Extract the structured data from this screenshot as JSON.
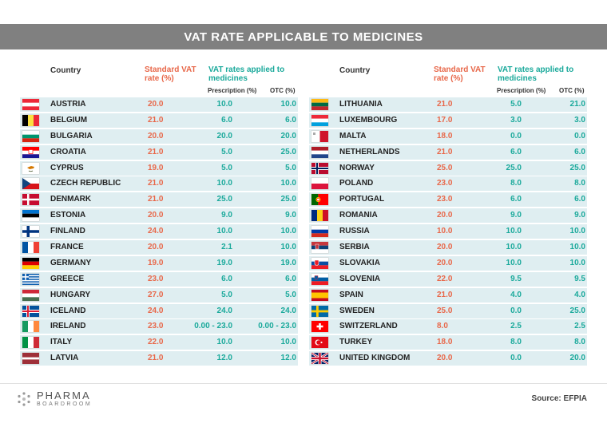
{
  "title": "VAT RATE APPLICABLE TO MEDICINES",
  "headers": {
    "country": "Country",
    "standard_vat": "Standard VAT rate (%)",
    "vat_applied": "VAT rates applied to medicines",
    "prescription": "Prescription (%)",
    "otc": "OTC (%)"
  },
  "colors": {
    "standard": "#e8684a",
    "applied": "#1aa99b",
    "row_bg": "#dfeef1",
    "title_bg": "#808080"
  },
  "footer": {
    "logo_line1": "PHARMA",
    "logo_line2": "BOARDROOM",
    "source": "Source: EFPIA"
  },
  "chart_data": {
    "type": "table",
    "columns": [
      "Country",
      "Standard VAT rate (%)",
      "Prescription (%)",
      "OTC (%)"
    ],
    "left": [
      {
        "country": "AUSTRIA",
        "flag": "austria-flag",
        "standard": "20.0",
        "prescription": "10.0",
        "otc": "10.0"
      },
      {
        "country": "BELGIUM",
        "flag": "belgium-flag",
        "standard": "21.0",
        "prescription": "6.0",
        "otc": "6.0"
      },
      {
        "country": "BULGARIA",
        "flag": "bulgaria-flag",
        "standard": "20.0",
        "prescription": "20.0",
        "otc": "20.0"
      },
      {
        "country": "CROATIA",
        "flag": "croatia-flag",
        "standard": "21.0",
        "prescription": "5.0",
        "otc": "25.0"
      },
      {
        "country": "CYPRUS",
        "flag": "cyprus-flag",
        "standard": "19.0",
        "prescription": "5.0",
        "otc": "5.0"
      },
      {
        "country": "CZECH REPUBLIC",
        "flag": "czech-republic-flag",
        "standard": "21.0",
        "prescription": "10.0",
        "otc": "10.0"
      },
      {
        "country": "DENMARK",
        "flag": "denmark-flag",
        "standard": "21.0",
        "prescription": "25.0",
        "otc": "25.0"
      },
      {
        "country": "ESTONIA",
        "flag": "estonia-flag",
        "standard": "20.0",
        "prescription": "9.0",
        "otc": "9.0"
      },
      {
        "country": "FINLAND",
        "flag": "finland-flag",
        "standard": "24.0",
        "prescription": "10.0",
        "otc": "10.0"
      },
      {
        "country": "FRANCE",
        "flag": "france-flag",
        "standard": "20.0",
        "prescription": "2.1",
        "otc": "10.0"
      },
      {
        "country": "GERMANY",
        "flag": "germany-flag",
        "standard": "19.0",
        "prescription": "19.0",
        "otc": "19.0"
      },
      {
        "country": "GREECE",
        "flag": "greece-flag",
        "standard": "23.0",
        "prescription": "6.0",
        "otc": "6.0"
      },
      {
        "country": "HUNGARY",
        "flag": "hungary-flag",
        "standard": "27.0",
        "prescription": "5.0",
        "otc": "5.0"
      },
      {
        "country": "ICELAND",
        "flag": "iceland-flag",
        "standard": "24.0",
        "prescription": "24.0",
        "otc": "24.0"
      },
      {
        "country": "IRELAND",
        "flag": "ireland-flag",
        "standard": "23.0",
        "prescription": "0.00 - 23.0",
        "otc": "0.00 - 23.0"
      },
      {
        "country": "ITALY",
        "flag": "italy-flag",
        "standard": "22.0",
        "prescription": "10.0",
        "otc": "10.0"
      },
      {
        "country": "LATVIA",
        "flag": "latvia-flag",
        "standard": "21.0",
        "prescription": "12.0",
        "otc": "12.0"
      }
    ],
    "right": [
      {
        "country": "LITHUANIA",
        "flag": "lithuania-flag",
        "standard": "21.0",
        "prescription": "5.0",
        "otc": "21.0"
      },
      {
        "country": "LUXEMBOURG",
        "flag": "luxembourg-flag",
        "standard": "17.0",
        "prescription": "3.0",
        "otc": "3.0"
      },
      {
        "country": "MALTA",
        "flag": "malta-flag",
        "standard": "18.0",
        "prescription": "0.0",
        "otc": "0.0"
      },
      {
        "country": "NETHERLANDS",
        "flag": "netherlands-flag",
        "standard": "21.0",
        "prescription": "6.0",
        "otc": "6.0"
      },
      {
        "country": "NORWAY",
        "flag": "norway-flag",
        "standard": "25.0",
        "prescription": "25.0",
        "otc": "25.0"
      },
      {
        "country": "POLAND",
        "flag": "poland-flag",
        "standard": "23.0",
        "prescription": "8.0",
        "otc": "8.0"
      },
      {
        "country": "PORTUGAL",
        "flag": "portugal-flag",
        "standard": "23.0",
        "prescription": "6.0",
        "otc": "6.0"
      },
      {
        "country": "ROMANIA",
        "flag": "romania-flag",
        "standard": "20.0",
        "prescription": "9.0",
        "otc": "9.0"
      },
      {
        "country": "RUSSIA",
        "flag": "russia-flag",
        "standard": "10.0",
        "prescription": "10.0",
        "otc": "10.0"
      },
      {
        "country": "SERBIA",
        "flag": "serbia-flag",
        "standard": "20.0",
        "prescription": "10.0",
        "otc": "10.0"
      },
      {
        "country": "SLOVAKIA",
        "flag": "slovakia-flag",
        "standard": "20.0",
        "prescription": "10.0",
        "otc": "10.0"
      },
      {
        "country": "SLOVENIA",
        "flag": "slovenia-flag",
        "standard": "22.0",
        "prescription": "9.5",
        "otc": "9.5"
      },
      {
        "country": "SPAIN",
        "flag": "spain-flag",
        "standard": "21.0",
        "prescription": "4.0",
        "otc": "4.0"
      },
      {
        "country": "SWEDEN",
        "flag": "sweden-flag",
        "standard": "25.0",
        "prescription": "0.0",
        "otc": "25.0"
      },
      {
        "country": "SWITZERLAND",
        "flag": "switzerland-flag",
        "standard": "8.0",
        "prescription": "2.5",
        "otc": "2.5"
      },
      {
        "country": "TURKEY",
        "flag": "turkey-flag",
        "standard": "18.0",
        "prescription": "8.0",
        "otc": "8.0"
      },
      {
        "country": "UNITED KINGDOM",
        "flag": "united-kingdom-flag",
        "standard": "20.0",
        "prescription": "0.0",
        "otc": "20.0"
      }
    ]
  }
}
